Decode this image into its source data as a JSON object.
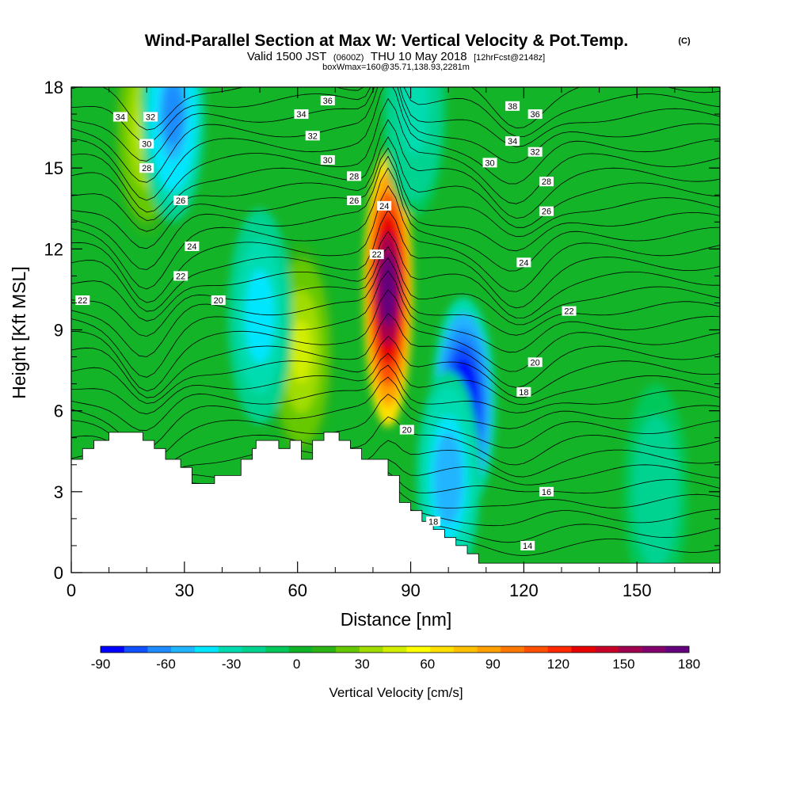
{
  "chart_data": {
    "type": "heatmap",
    "title": "Wind-Parallel Section at Max W: Vertical Velocity & Pot.Temp.",
    "title_mark": "(C)",
    "subtitle": {
      "valid": "Valid 1500 JST",
      "utc": "(0600Z)",
      "date": "THU 10 May 2018",
      "fcst": "[12hrFcst@2148z]"
    },
    "subtitle2": "boxWmax=160@35.71,138.93,2281m",
    "xlabel": "Distance [nm]",
    "ylabel": "Height [Kft MSL]",
    "xlim": [
      0,
      172
    ],
    "ylim": [
      0,
      18
    ],
    "x_ticks": [
      0,
      30,
      60,
      90,
      120,
      150
    ],
    "y_ticks": [
      0,
      3,
      6,
      9,
      12,
      15,
      18
    ],
    "colorbar": {
      "label": "Vertical Velocity [cm/s]",
      "ticks": [
        -90,
        -60,
        -30,
        0,
        30,
        60,
        90,
        120,
        150,
        180
      ],
      "range": [
        -90,
        180
      ],
      "colors": [
        "#0000ff",
        "#1050ff",
        "#1e8cff",
        "#20b4ff",
        "#00e6ff",
        "#00dcb0",
        "#00d290",
        "#00c85a",
        "#10b428",
        "#2cb414",
        "#66c800",
        "#a0dc00",
        "#d2ee00",
        "#ffff00",
        "#ffe000",
        "#ffc000",
        "#ffa000",
        "#ff7800",
        "#ff5000",
        "#ff2800",
        "#e60000",
        "#c80028",
        "#a00050",
        "#82006e",
        "#64007d"
      ]
    },
    "terrain_kft": [
      [
        0,
        4.2
      ],
      [
        3,
        4.2
      ],
      [
        3,
        4.6
      ],
      [
        6,
        4.6
      ],
      [
        6,
        4.9
      ],
      [
        10,
        4.9
      ],
      [
        10,
        5.2
      ],
      [
        19,
        5.2
      ],
      [
        19,
        4.9
      ],
      [
        22,
        4.9
      ],
      [
        22,
        4.6
      ],
      [
        25,
        4.6
      ],
      [
        25,
        4.2
      ],
      [
        29,
        4.2
      ],
      [
        29,
        3.9
      ],
      [
        32,
        3.9
      ],
      [
        32,
        3.3
      ],
      [
        38,
        3.3
      ],
      [
        38,
        3.6
      ],
      [
        45,
        3.6
      ],
      [
        45,
        4.2
      ],
      [
        48,
        4.2
      ],
      [
        48,
        4.6
      ],
      [
        49,
        4.6
      ],
      [
        49,
        4.9
      ],
      [
        55,
        4.9
      ],
      [
        55,
        4.6
      ],
      [
        58,
        4.6
      ],
      [
        58,
        4.9
      ],
      [
        61,
        4.9
      ],
      [
        61,
        4.2
      ],
      [
        64,
        4.2
      ],
      [
        64,
        4.9
      ],
      [
        67,
        4.9
      ],
      [
        67,
        5.2
      ],
      [
        71,
        5.2
      ],
      [
        71,
        4.9
      ],
      [
        74,
        4.9
      ],
      [
        74,
        4.6
      ],
      [
        77,
        4.6
      ],
      [
        77,
        4.2
      ],
      [
        84,
        4.2
      ],
      [
        84,
        3.6
      ],
      [
        87,
        3.6
      ],
      [
        87,
        2.6
      ],
      [
        90,
        2.6
      ],
      [
        90,
        2.3
      ],
      [
        93,
        2.3
      ],
      [
        93,
        1.9
      ],
      [
        96,
        1.9
      ],
      [
        96,
        1.6
      ],
      [
        99,
        1.6
      ],
      [
        99,
        1.3
      ],
      [
        102,
        1.3
      ],
      [
        102,
        1.0
      ],
      [
        105,
        1.0
      ],
      [
        105,
        0.7
      ],
      [
        108,
        0.7
      ],
      [
        108,
        0.35
      ],
      [
        172,
        0.35
      ]
    ],
    "w_features": [
      {
        "x": 84,
        "z": 10.5,
        "w": 180
      },
      {
        "x": 61,
        "z": 8.2,
        "w": 40
      },
      {
        "x": 20,
        "z": 16.5,
        "w": 45
      },
      {
        "x": 104,
        "z": 6.2,
        "w": -95
      },
      {
        "x": 100,
        "z": 3.5,
        "w": -55
      },
      {
        "x": 50,
        "z": 9.5,
        "w": -45
      },
      {
        "x": 27,
        "z": 17.0,
        "w": -60
      },
      {
        "x": 91,
        "z": 17.2,
        "w": -30
      },
      {
        "x": 155,
        "z": 3.0,
        "w": -25
      }
    ],
    "theta_labels": [
      {
        "text": "34",
        "x": 13,
        "z": 16.9
      },
      {
        "text": "32",
        "x": 21,
        "z": 16.9
      },
      {
        "text": "30",
        "x": 20,
        "z": 15.9
      },
      {
        "text": "28",
        "x": 20,
        "z": 15.0
      },
      {
        "text": "26",
        "x": 29,
        "z": 13.8
      },
      {
        "text": "24",
        "x": 32,
        "z": 12.1
      },
      {
        "text": "22",
        "x": 29,
        "z": 11.0
      },
      {
        "text": "20",
        "x": 39,
        "z": 10.1
      },
      {
        "text": "22",
        "x": 3,
        "z": 10.1
      },
      {
        "text": "34",
        "x": 61,
        "z": 17.0
      },
      {
        "text": "36",
        "x": 68,
        "z": 17.5
      },
      {
        "text": "32",
        "x": 64,
        "z": 16.2
      },
      {
        "text": "30",
        "x": 68,
        "z": 15.3
      },
      {
        "text": "28",
        "x": 75,
        "z": 14.7
      },
      {
        "text": "26",
        "x": 75,
        "z": 13.8
      },
      {
        "text": "24",
        "x": 83,
        "z": 13.6
      },
      {
        "text": "22",
        "x": 81,
        "z": 11.8
      },
      {
        "text": "20",
        "x": 89,
        "z": 5.3
      },
      {
        "text": "18",
        "x": 96,
        "z": 1.9
      },
      {
        "text": "38",
        "x": 117,
        "z": 17.3
      },
      {
        "text": "36",
        "x": 123,
        "z": 17.0
      },
      {
        "text": "34",
        "x": 117,
        "z": 16.0
      },
      {
        "text": "32",
        "x": 123,
        "z": 15.6
      },
      {
        "text": "30",
        "x": 111,
        "z": 15.2
      },
      {
        "text": "28",
        "x": 126,
        "z": 14.5
      },
      {
        "text": "26",
        "x": 126,
        "z": 13.4
      },
      {
        "text": "24",
        "x": 120,
        "z": 11.5
      },
      {
        "text": "22",
        "x": 132,
        "z": 9.7
      },
      {
        "text": "20",
        "x": 123,
        "z": 7.8
      },
      {
        "text": "18",
        "x": 120,
        "z": 6.7
      },
      {
        "text": "16",
        "x": 126,
        "z": 3.0
      },
      {
        "text": "14",
        "x": 121,
        "z": 1.0
      }
    ]
  }
}
